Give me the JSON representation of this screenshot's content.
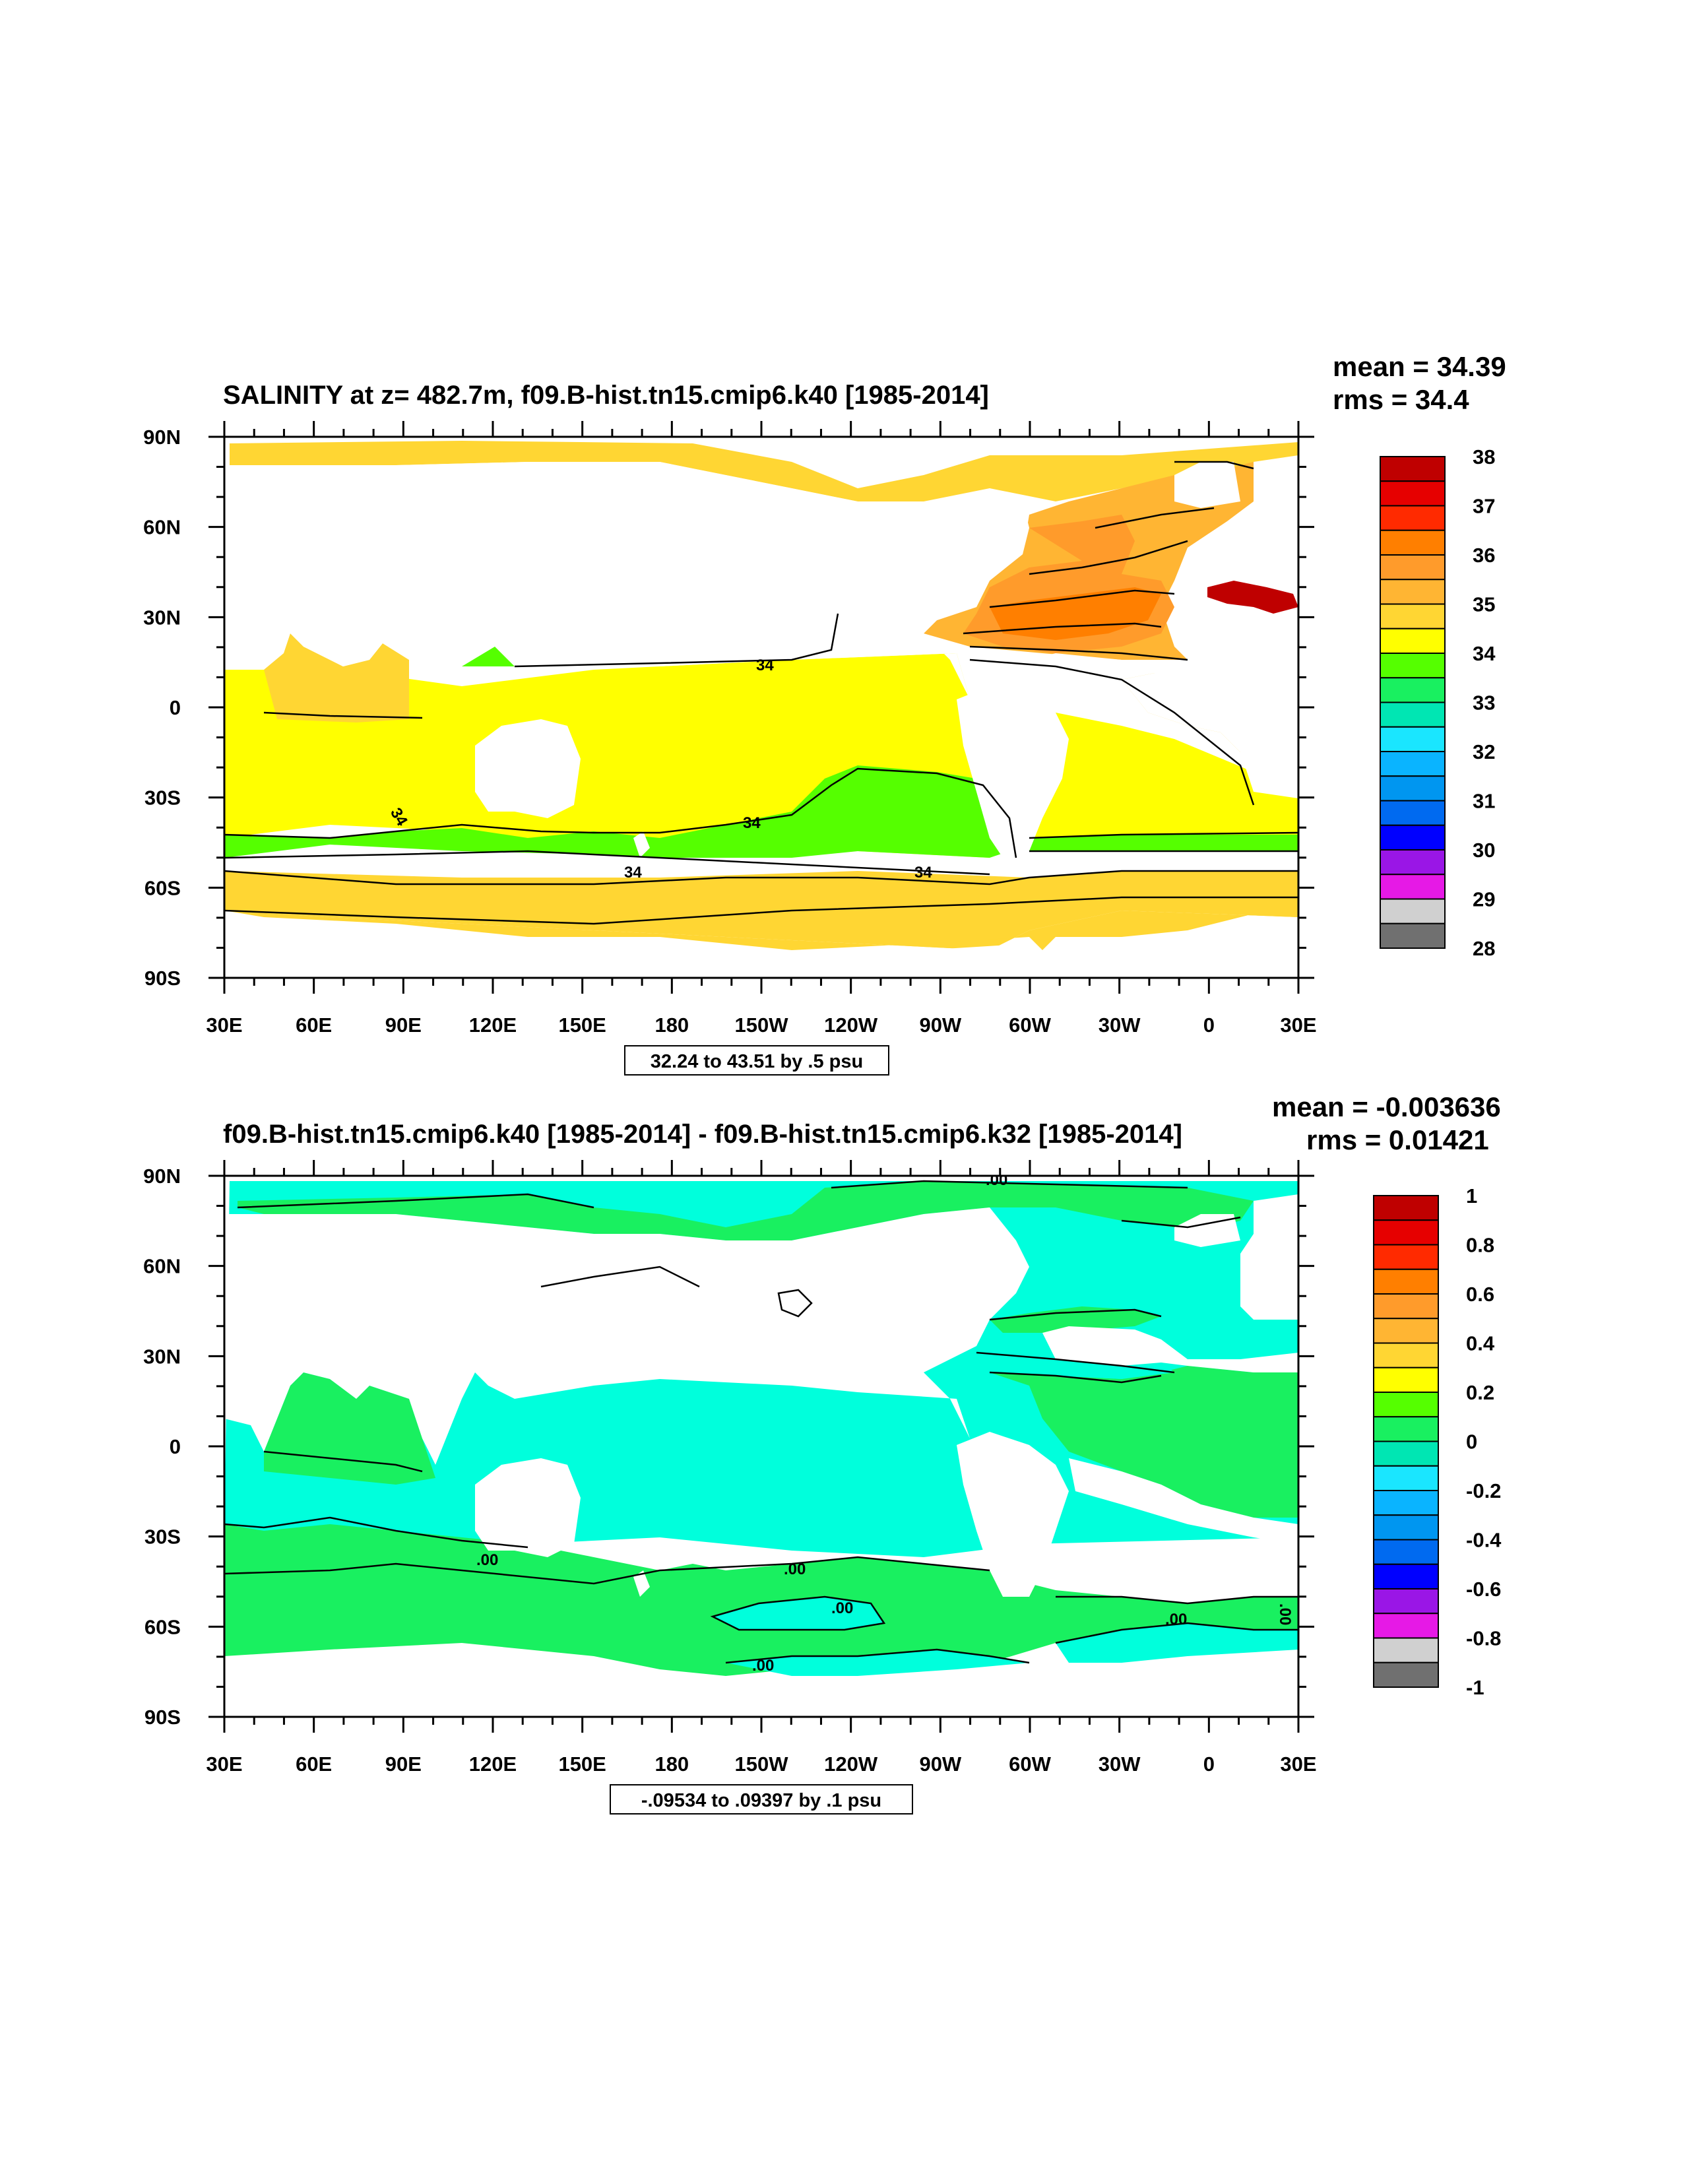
{
  "chart_data": [
    {
      "type": "heatmap",
      "title": "SALINITY at z= 482.7m, f09.B-hist.tn15.cmip6.k40 [1985-2014]",
      "mean_text": "mean = 34.39",
      "rms_text": "rms = 34.4",
      "range_text": "32.24 to 43.51 by .5 psu",
      "x_ticks": [
        "30E",
        "60E",
        "90E",
        "120E",
        "150E",
        "180",
        "150W",
        "120W",
        "90W",
        "60W",
        "30W",
        "0",
        "30E"
      ],
      "y_ticks": [
        "90N",
        "60N",
        "30N",
        "0",
        "30S",
        "60S",
        "90S"
      ],
      "colorbar": {
        "labels": [
          "38",
          "37",
          "36",
          "35",
          "34",
          "33",
          "32",
          "31",
          "30",
          "29",
          "28"
        ],
        "colors": [
          "#bf0000",
          "#e60000",
          "#ff2a00",
          "#ff7f00",
          "#ff9b2b",
          "#ffb533",
          "#ffd633",
          "#ffff00",
          "#55ff00",
          "#19f060",
          "#00e6b3",
          "#1ae6ff",
          "#0ab4ff",
          "#0096f0",
          "#006af0",
          "#0000ff",
          "#9a16e6",
          "#e619e6",
          "#d0d0d0",
          "#707070"
        ]
      },
      "contour_labels": [
        "34",
        "34",
        "34",
        "34",
        "34"
      ]
    },
    {
      "type": "heatmap",
      "title": "f09.B-hist.tn15.cmip6.k40 [1985-2014] - f09.B-hist.tn15.cmip6.k32 [1985-2014]",
      "mean_text": "mean = -0.003636",
      "rms_text": "rms = 0.01421",
      "range_text": "-.09534 to .09397 by .1 psu",
      "x_ticks": [
        "30E",
        "60E",
        "90E",
        "120E",
        "150E",
        "180",
        "150W",
        "120W",
        "90W",
        "60W",
        "30W",
        "0",
        "30E"
      ],
      "y_ticks": [
        "90N",
        "60N",
        "30N",
        "0",
        "30S",
        "60S",
        "90S"
      ],
      "colorbar": {
        "labels": [
          "1",
          "0.8",
          "0.6",
          "0.4",
          "0.2",
          "0",
          "-0.2",
          "-0.4",
          "-0.6",
          "-0.8",
          "-1"
        ],
        "colors": [
          "#bf0000",
          "#e60000",
          "#ff2a00",
          "#ff7f00",
          "#ff9b2b",
          "#ffb533",
          "#ffd633",
          "#ffff00",
          "#55ff00",
          "#19f060",
          "#00e6b3",
          "#1ae6ff",
          "#0ab4ff",
          "#0096f0",
          "#006af0",
          "#0000ff",
          "#9a16e6",
          "#e619e6",
          "#d0d0d0",
          "#707070"
        ]
      },
      "contour_labels": [
        ".00",
        ".00",
        ".00",
        ".00",
        ".00",
        ".00",
        ".00"
      ]
    }
  ]
}
